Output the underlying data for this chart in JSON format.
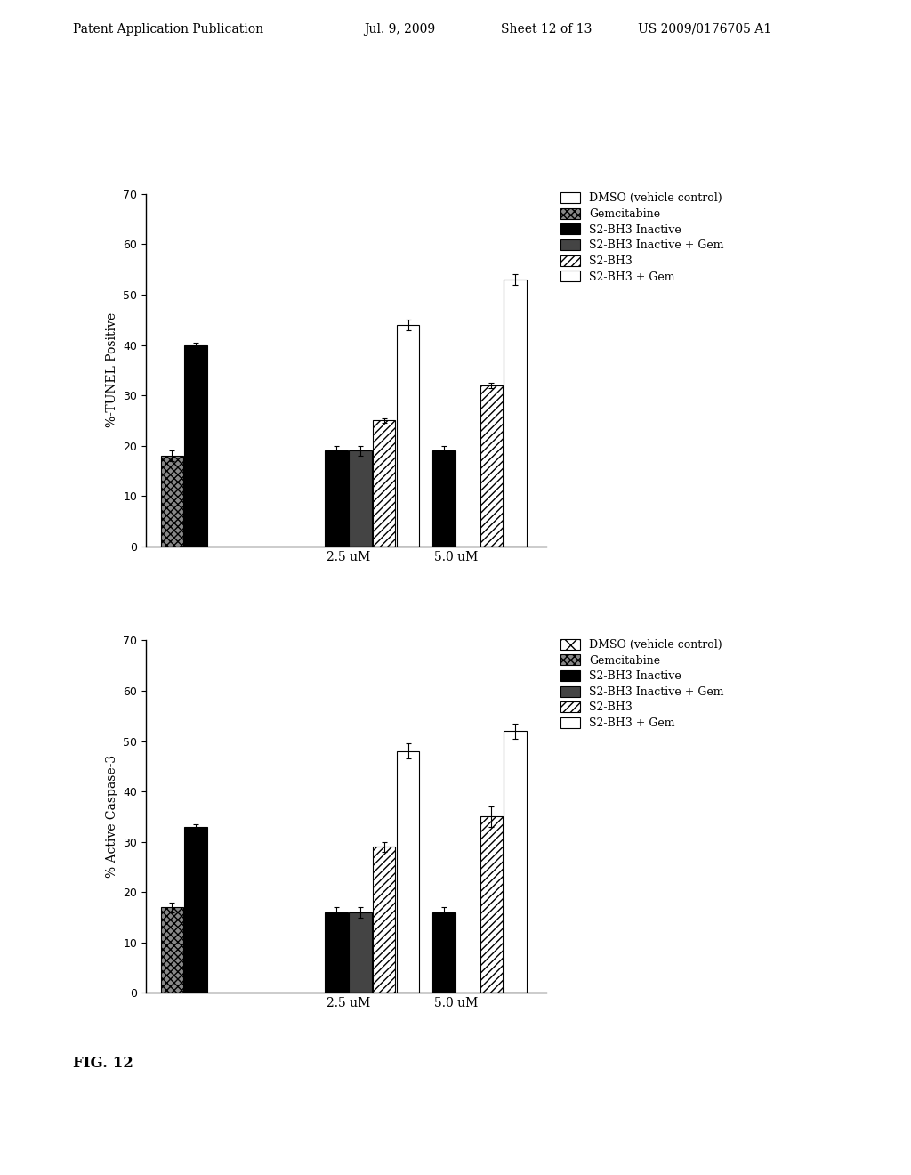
{
  "chart1": {
    "ylabel": "%-TUNEL Positive",
    "ylim": [
      0,
      70
    ],
    "yticks": [
      0,
      10,
      20,
      30,
      40,
      50,
      60,
      70
    ],
    "series_keys": [
      "DMSO (vehicle control)",
      "Gemcitabine",
      "S2-BH3 Inactive",
      "S2-BH3 Inactive + Gem",
      "S2-BH3",
      "S2-BH3 + Gem"
    ],
    "series": {
      "DMSO (vehicle control)": {
        "values": [
          0,
          0,
          0
        ],
        "color": "white",
        "hatch": "",
        "edgecolor": "black"
      },
      "Gemcitabine": {
        "values": [
          18,
          0,
          0
        ],
        "color": "#888888",
        "hatch": "xxxx",
        "edgecolor": "black"
      },
      "S2-BH3 Inactive": {
        "values": [
          40,
          19,
          19
        ],
        "color": "black",
        "hatch": "",
        "edgecolor": "black"
      },
      "S2-BH3 Inactive + Gem": {
        "values": [
          0,
          19,
          0
        ],
        "color": "#444444",
        "hatch": "",
        "edgecolor": "black"
      },
      "S2-BH3": {
        "values": [
          0,
          25,
          32
        ],
        "color": "white",
        "hatch": "////",
        "edgecolor": "black"
      },
      "S2-BH3 + Gem": {
        "values": [
          0,
          44,
          53
        ],
        "color": "white",
        "hatch": "",
        "edgecolor": "black"
      }
    },
    "errors": {
      "DMSO (vehicle control)": [
        0,
        0,
        0
      ],
      "Gemcitabine": [
        1.0,
        0,
        0
      ],
      "S2-BH3 Inactive": [
        0.5,
        1.0,
        1.0
      ],
      "S2-BH3 Inactive + Gem": [
        0,
        1.0,
        0
      ],
      "S2-BH3": [
        0,
        0.5,
        0.5
      ],
      "S2-BH3 + Gem": [
        0,
        1.0,
        1.0
      ]
    }
  },
  "chart2": {
    "ylabel": "% Active Caspase-3",
    "ylim": [
      0,
      70
    ],
    "yticks": [
      0,
      10,
      20,
      30,
      40,
      50,
      60,
      70
    ],
    "series_keys": [
      "DMSO (vehicle control)",
      "Gemcitabine",
      "S2-BH3 Inactive",
      "S2-BH3 Inactive + Gem",
      "S2-BH3",
      "S2-BH3 + Gem"
    ],
    "series": {
      "DMSO (vehicle control)": {
        "values": [
          0,
          0,
          0
        ],
        "color": "white",
        "hatch": "xx",
        "edgecolor": "black"
      },
      "Gemcitabine": {
        "values": [
          17,
          0,
          0
        ],
        "color": "#888888",
        "hatch": "xxxx",
        "edgecolor": "black"
      },
      "S2-BH3 Inactive": {
        "values": [
          33,
          16,
          16
        ],
        "color": "black",
        "hatch": "",
        "edgecolor": "black"
      },
      "S2-BH3 Inactive + Gem": {
        "values": [
          0,
          16,
          0
        ],
        "color": "#444444",
        "hatch": "",
        "edgecolor": "black"
      },
      "S2-BH3": {
        "values": [
          0,
          29,
          35
        ],
        "color": "white",
        "hatch": "////",
        "edgecolor": "black"
      },
      "S2-BH3 + Gem": {
        "values": [
          0,
          48,
          52
        ],
        "color": "white",
        "hatch": "",
        "edgecolor": "black"
      }
    },
    "errors": {
      "DMSO (vehicle control)": [
        0,
        0,
        0
      ],
      "Gemcitabine": [
        1.0,
        0,
        0
      ],
      "S2-BH3 Inactive": [
        0.5,
        1.0,
        1.0
      ],
      "S2-BH3 Inactive + Gem": [
        0,
        1.0,
        0
      ],
      "S2-BH3": [
        0,
        1.0,
        2.0
      ],
      "S2-BH3 + Gem": [
        0,
        1.5,
        1.5
      ]
    }
  },
  "legend_labels": [
    "DMSO (vehicle control)",
    "Gemcitabine",
    "S2-BH3 Inactive",
    "S2-BH3 Inactive + Gem",
    "S2-BH3",
    "S2-BH3 + Gem"
  ],
  "legend_styles": [
    {
      "facecolor": "white",
      "hatch": "",
      "edgecolor": "black"
    },
    {
      "facecolor": "#888888",
      "hatch": "xxxx",
      "edgecolor": "black"
    },
    {
      "facecolor": "black",
      "hatch": "",
      "edgecolor": "black"
    },
    {
      "facecolor": "#444444",
      "hatch": "",
      "edgecolor": "black"
    },
    {
      "facecolor": "white",
      "hatch": "////",
      "edgecolor": "black"
    },
    {
      "facecolor": "white",
      "hatch": "",
      "edgecolor": "black"
    }
  ],
  "legend_styles2": [
    {
      "facecolor": "white",
      "hatch": "xx",
      "edgecolor": "black"
    },
    {
      "facecolor": "#888888",
      "hatch": "xxxx",
      "edgecolor": "black"
    },
    {
      "facecolor": "black",
      "hatch": "",
      "edgecolor": "black"
    },
    {
      "facecolor": "#444444",
      "hatch": "",
      "edgecolor": "black"
    },
    {
      "facecolor": "white",
      "hatch": "////",
      "edgecolor": "black"
    },
    {
      "facecolor": "white",
      "hatch": "",
      "edgecolor": "black"
    }
  ],
  "header_text": [
    "Patent Application Publication",
    "Jul. 9, 2009",
    "Sheet 12 of 13",
    "US 2009/0176705 A1"
  ],
  "fig_label": "FIG. 12",
  "group_positions": [
    0.18,
    0.52,
    0.78
  ],
  "xlim": [
    0.03,
    1.0
  ],
  "xtick_labels": [
    "2.5 uM",
    "5.0 uM"
  ],
  "bar_width": 0.055,
  "background_color": "white",
  "text_color": "black"
}
